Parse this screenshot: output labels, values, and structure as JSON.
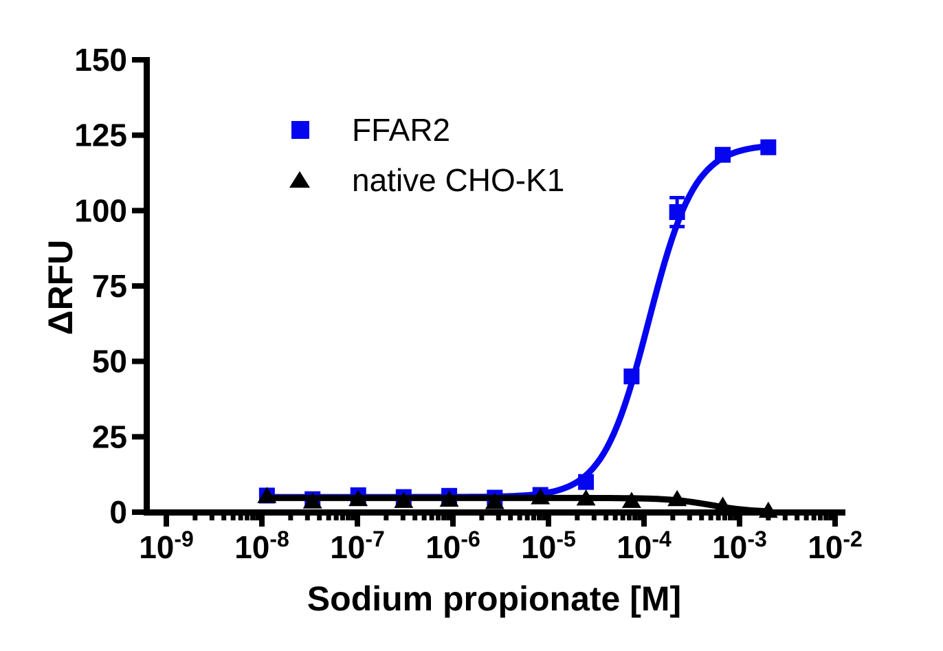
{
  "figure": {
    "background_color": "#ffffff",
    "axis_color": "#000000"
  },
  "chart_data": {
    "type": "scatter",
    "subtype": "dose-response-curve",
    "title": "",
    "xlabel": "Sodium propionate [M]",
    "ylabel": "ΔRFU",
    "x_scale": "log10",
    "xlim_log": [
      -9,
      -2
    ],
    "ylim": [
      0,
      150
    ],
    "y_ticks": [
      0,
      25,
      50,
      75,
      100,
      125,
      150
    ],
    "x_tick_exponents": [
      -9,
      -8,
      -7,
      -6,
      -5,
      -4,
      -3,
      -2
    ],
    "x_tick_base": "10",
    "x_minor_ticks_per_decade": [
      2,
      3,
      4,
      5,
      6,
      7,
      8,
      9
    ],
    "grid": "off",
    "legend_position": "upper-left-inside",
    "series": [
      {
        "name": "FFAR2",
        "marker": "square",
        "color": "#0505f0",
        "x_molar": [
          1.13e-08,
          3.39e-08,
          1.02e-07,
          3.05e-07,
          9.14e-07,
          2.74e-06,
          8.23e-06,
          2.47e-05,
          7.41e-05,
          0.000222,
          0.000667,
          0.002
        ],
        "y": [
          5.5,
          4.3,
          5.6,
          5.0,
          5.4,
          4.8,
          5.7,
          10,
          45,
          99.5,
          118.5,
          121
        ],
        "sem": [
          0,
          0,
          0,
          0,
          0,
          0,
          0,
          0,
          0,
          4.8,
          0,
          0
        ],
        "fit": {
          "model": "logistic4",
          "bottom": 5,
          "top": 122,
          "log_ec50": -3.95,
          "hill": 1.8
        }
      },
      {
        "name": "native CHO-K1",
        "marker": "triangle",
        "color": "#000000",
        "x_molar": [
          1.13e-08,
          3.39e-08,
          1.02e-07,
          3.05e-07,
          9.14e-07,
          2.74e-06,
          8.23e-06,
          2.47e-05,
          7.41e-05,
          0.000222,
          0.000667,
          0.002
        ],
        "y": [
          5.4,
          3.6,
          4.4,
          3.8,
          4.2,
          3.4,
          5.0,
          4.6,
          3.8,
          4.4,
          2.2,
          0.5
        ],
        "sem": [
          0,
          0,
          0,
          0,
          0,
          0,
          0,
          0,
          0,
          0,
          0,
          0
        ],
        "fit": {
          "model": "logistic4",
          "bottom": 4.7,
          "top": 0,
          "log_ec50": -3.3,
          "hill": 2
        }
      }
    ]
  }
}
